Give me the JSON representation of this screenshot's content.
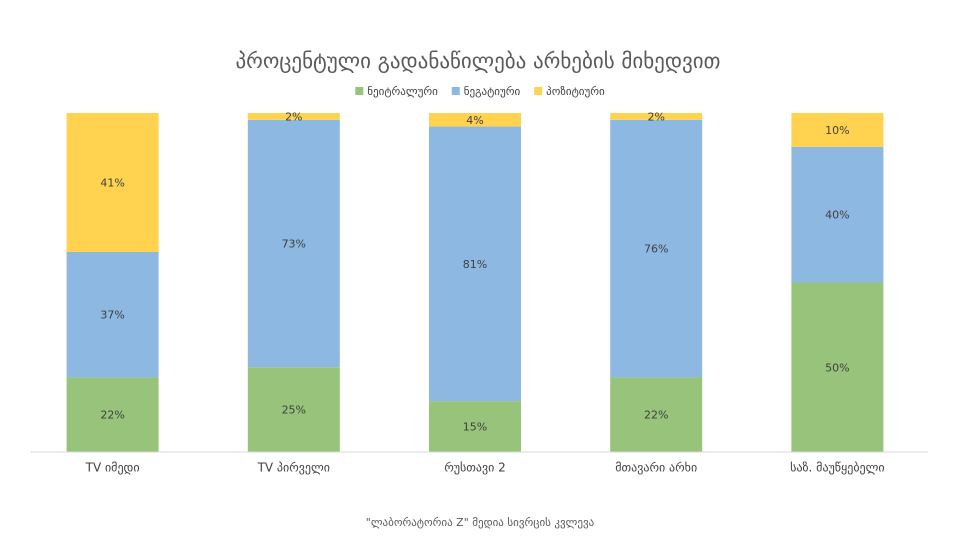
{
  "chart_data": {
    "type": "stacked_bar_100",
    "title": "პროცენტული გადანაწილება არხების მიხედვით",
    "categories": [
      "TV იმედი",
      "TV პირველი",
      "რუსთავი 2",
      "მთავარი არხი",
      "საზ. მაუწყებელი"
    ],
    "series": [
      {
        "name": "ნეიტრალური",
        "color": "#97c47a",
        "values": [
          22,
          25,
          15,
          22,
          50
        ],
        "value_labels": [
          "22%",
          "25%",
          "15%",
          "22%",
          "50%"
        ]
      },
      {
        "name": "ნეგატიური",
        "color": "#8db8e2",
        "values": [
          37,
          73,
          81,
          76,
          40
        ],
        "value_labels": [
          "37%",
          "73%",
          "81%",
          "76%",
          "40%"
        ]
      },
      {
        "name": "პოზიტიური",
        "color": "#ffd34f",
        "values": [
          41,
          2,
          4,
          2,
          10
        ],
        "value_labels": [
          "41%",
          "2%",
          "4%",
          "2%",
          "10%"
        ]
      }
    ],
    "ylim": [
      0,
      100
    ],
    "legend": "top",
    "source": "\"ლაბორატორია Z\" მედია სივრცის კვლევა"
  }
}
